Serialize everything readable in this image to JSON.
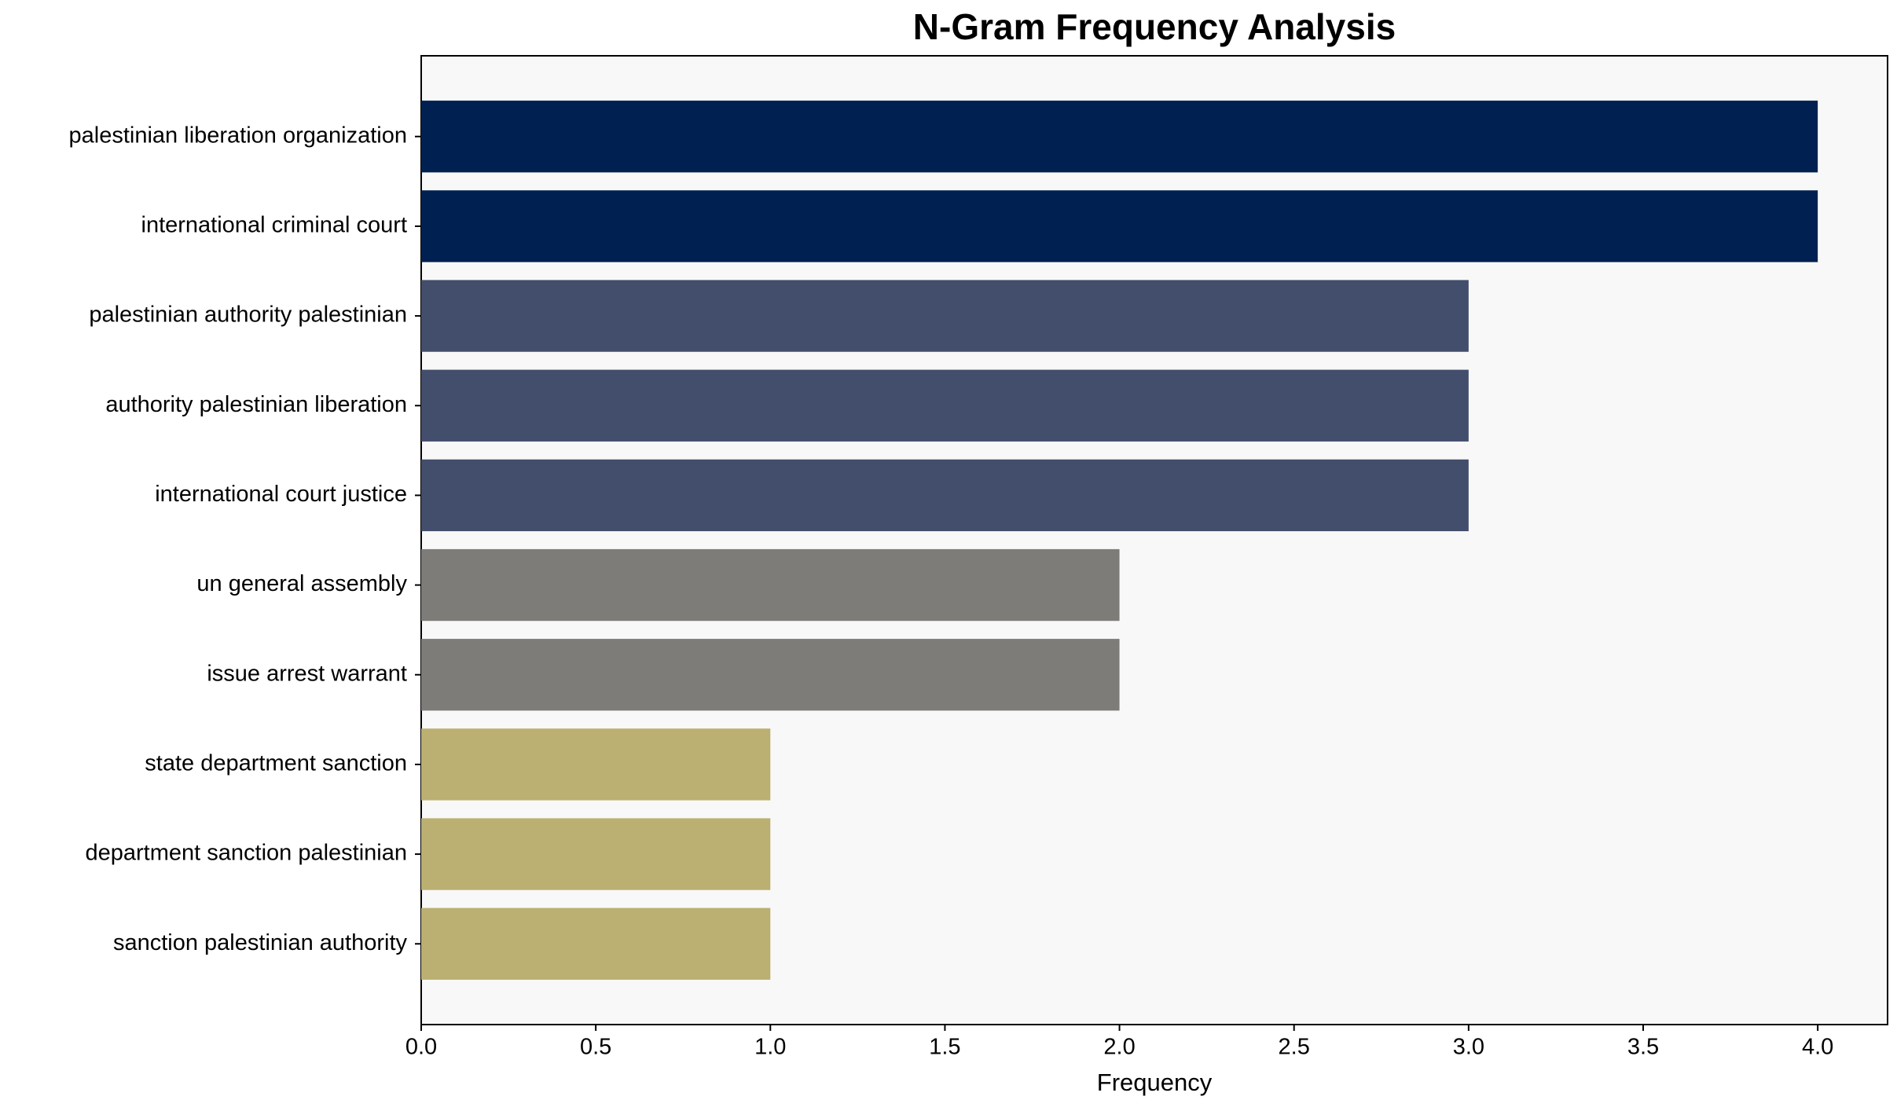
{
  "chart_data": {
    "type": "barh",
    "title": "N-Gram Frequency Analysis",
    "xlabel": "Frequency",
    "categories": [
      "palestinian liberation organization",
      "international criminal court",
      "palestinian authority palestinian",
      "authority palestinian liberation",
      "international court justice",
      "un general assembly",
      "issue arrest warrant",
      "state department sanction",
      "department sanction palestinian",
      "sanction palestinian authority"
    ],
    "values": [
      4,
      4,
      3,
      3,
      3,
      2,
      2,
      1,
      1,
      1
    ],
    "colors": [
      "#002051",
      "#002051",
      "#434e6c",
      "#434e6c",
      "#434e6c",
      "#7d7c78",
      "#7d7c78",
      "#bbaf71",
      "#bbaf71",
      "#bbaf71"
    ],
    "xlim": [
      0,
      4.2
    ],
    "xticks": [
      {
        "value": 0,
        "label": "0.0"
      },
      {
        "value": 0.5,
        "label": "0.5"
      },
      {
        "value": 1,
        "label": "1.0"
      },
      {
        "value": 1.5,
        "label": "1.5"
      },
      {
        "value": 2,
        "label": "2.0"
      },
      {
        "value": 2.5,
        "label": "2.5"
      },
      {
        "value": 3,
        "label": "3.0"
      },
      {
        "value": 3.5,
        "label": "3.5"
      },
      {
        "value": 4,
        "label": "4.0"
      }
    ],
    "grid": false
  }
}
